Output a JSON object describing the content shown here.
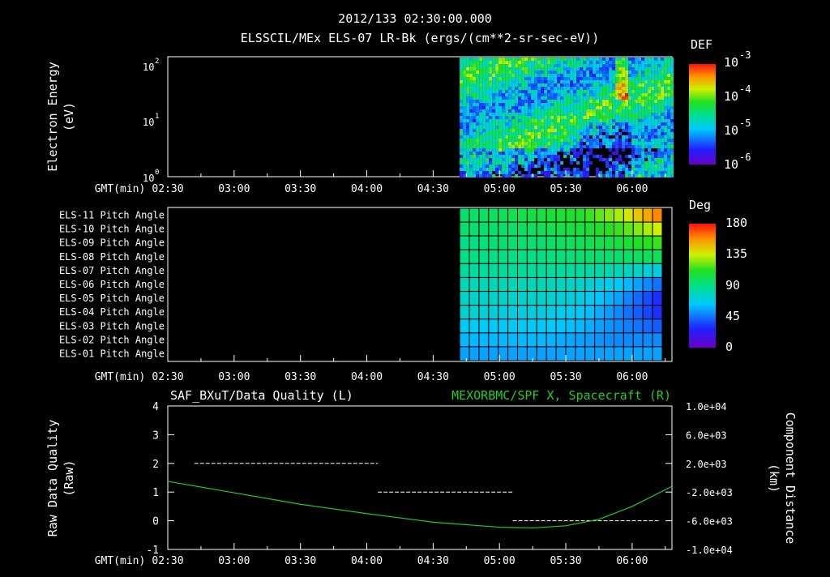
{
  "header": {
    "timestamp": "2012/133 02:30:00.000",
    "title": "ELSSCIL/MEx ELS-07 LR-Bk  (ergs/(cm**2-sr-sec-eV))"
  },
  "time_axis": {
    "label": "GMT(min)",
    "ticks": [
      "02:30",
      "03:00",
      "03:30",
      "04:00",
      "04:30",
      "05:00",
      "05:30",
      "06:00"
    ]
  },
  "chart_data": [
    {
      "type": "heatmap",
      "title": "ELSSCIL/MEx ELS-07 LR-Bk  (ergs/(cm**2-sr-sec-eV))",
      "ylabel_line1": "Electron Energy",
      "ylabel_line2": "(eV)",
      "yscale": "log",
      "ylim": [
        1,
        150
      ],
      "yticks": [
        {
          "base": "10",
          "exp": "0"
        },
        {
          "base": "10",
          "exp": "1"
        },
        {
          "base": "10",
          "exp": "2"
        }
      ],
      "x_range": [
        "02:30",
        "06:18"
      ],
      "data_start": "04:42",
      "colorbar": {
        "label": "DEF",
        "scale": "log",
        "ticks": [
          {
            "base": "10",
            "exp": "-3"
          },
          {
            "base": "10",
            "exp": "-4"
          },
          {
            "base": "10",
            "exp": "-5"
          },
          {
            "base": "10",
            "exp": "-6"
          }
        ]
      }
    },
    {
      "type": "heatmap",
      "rows": [
        "ELS-11 Pitch Angle",
        "ELS-10 Pitch Angle",
        "ELS-09 Pitch Angle",
        "ELS-08 Pitch Angle",
        "ELS-07 Pitch Angle",
        "ELS-06 Pitch Angle",
        "ELS-05 Pitch Angle",
        "ELS-04 Pitch Angle",
        "ELS-03 Pitch Angle",
        "ELS-02 Pitch Angle",
        "ELS-01 Pitch Angle"
      ],
      "x_range": [
        "02:30",
        "06:18"
      ],
      "data_start": "04:42",
      "colorbar": {
        "label": "Deg",
        "ticks": [
          "180",
          "135",
          "90",
          "45",
          "0"
        ]
      },
      "approx_values_deg": {
        "ELS-11 Pitch Angle": [
          95,
          100,
          105,
          110,
          130,
          160
        ],
        "ELS-10 Pitch Angle": [
          95,
          95,
          100,
          105,
          115,
          135
        ],
        "ELS-09 Pitch Angle": [
          90,
          95,
          95,
          100,
          105,
          115
        ],
        "ELS-08 Pitch Angle": [
          90,
          90,
          90,
          95,
          95,
          100
        ],
        "ELS-07 Pitch Angle": [
          85,
          85,
          85,
          85,
          80,
          70
        ],
        "ELS-06 Pitch Angle": [
          80,
          80,
          80,
          75,
          65,
          45
        ],
        "ELS-05 Pitch Angle": [
          75,
          75,
          75,
          70,
          55,
          30
        ],
        "ELS-04 Pitch Angle": [
          75,
          70,
          70,
          65,
          50,
          30
        ],
        "ELS-03 Pitch Angle": [
          65,
          65,
          65,
          60,
          50,
          40
        ],
        "ELS-02 Pitch Angle": [
          60,
          60,
          60,
          55,
          50,
          50
        ],
        "ELS-01 Pitch Angle": [
          55,
          55,
          55,
          55,
          55,
          55
        ]
      }
    },
    {
      "type": "line",
      "title_left": "SAF_BXuT/Data Quality (L)",
      "title_right": "MEXORBMC/SPF X, Spacecraft (R)",
      "ylabel_left_line1": "Raw Data Quality",
      "ylabel_left_line2": "(Raw)",
      "ylabel_right_line1": "Component Distance",
      "ylabel_right_line2": "(km)",
      "ylim_left": [
        -1,
        4
      ],
      "yticks_left": [
        "4",
        "3",
        "2",
        "1",
        "0",
        "-1"
      ],
      "ylim_right": [
        -10000,
        10000
      ],
      "yticks_right": [
        "1.0e+04",
        "6.0e+03",
        "2.0e+03",
        "-2.0e+03",
        "-6.0e+03",
        "-1.0e+04"
      ],
      "series": [
        {
          "name": "SAF_BXuT/Data Quality",
          "axis": "left",
          "color": "#ffffff",
          "segments": [
            {
              "x": [
                "02:42",
                "04:05"
              ],
              "y": 2
            },
            {
              "x": [
                "04:05",
                "05:06"
              ],
              "y": 1
            },
            {
              "x": [
                "05:06",
                "06:12"
              ],
              "y": 0
            }
          ]
        },
        {
          "name": "MEXORBMC/SPF X, Spacecraft",
          "axis": "right",
          "color": "#22cc22",
          "x": [
            "02:30",
            "03:00",
            "03:30",
            "04:00",
            "04:30",
            "05:00",
            "05:15",
            "05:30",
            "05:45",
            "06:00",
            "06:18"
          ],
          "y": [
            -500,
            -2100,
            -3700,
            -5000,
            -6200,
            -6900,
            -7000,
            -6700,
            -5800,
            -4000,
            -1200
          ]
        }
      ]
    }
  ],
  "colors": {
    "background": "#000000",
    "axes": "#ffffff",
    "spacecraft_line": "#22cc22"
  }
}
